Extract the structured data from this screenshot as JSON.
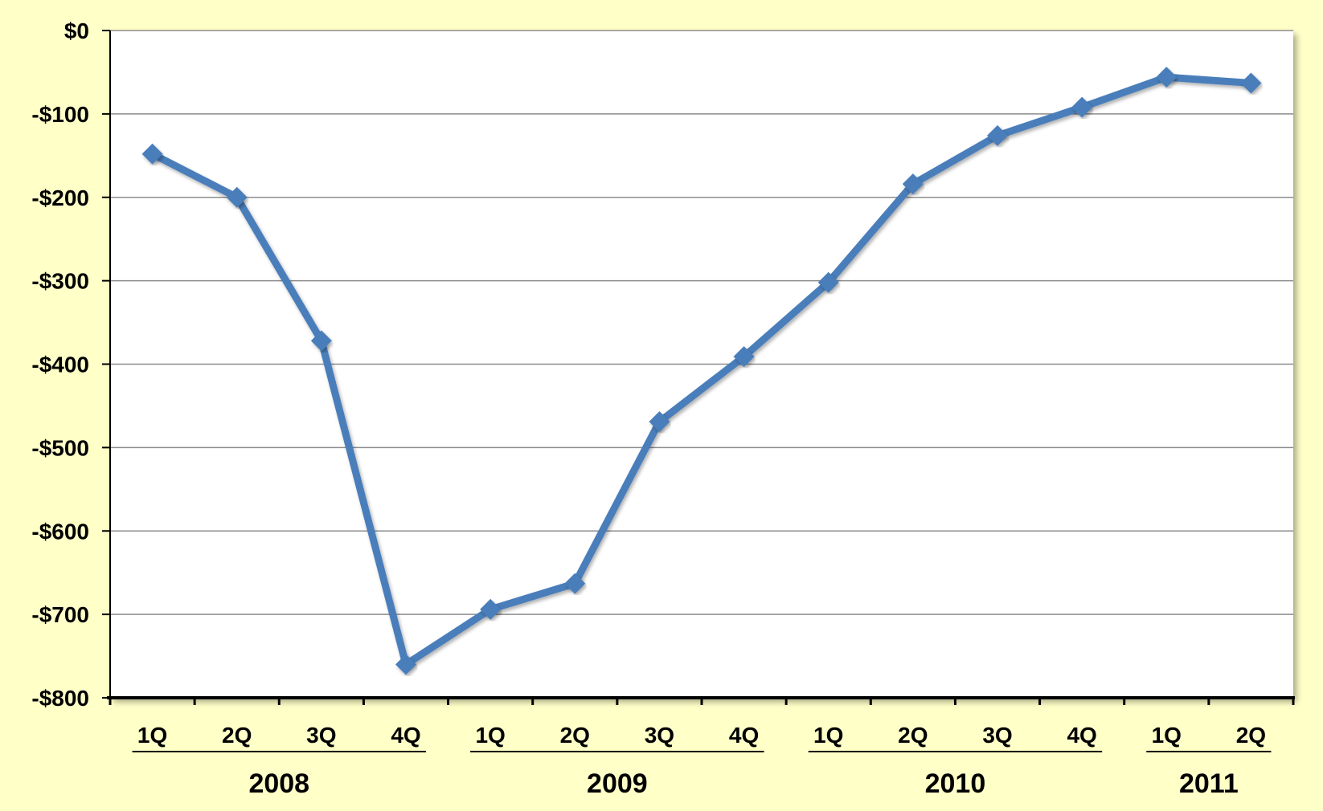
{
  "chart_data": {
    "type": "line",
    "title": "",
    "xlabel": "",
    "ylabel": "",
    "ylim": [
      -800,
      0
    ],
    "yticks": [
      0,
      -100,
      -200,
      -300,
      -400,
      -500,
      -600,
      -700,
      -800
    ],
    "ytick_labels": [
      "$0",
      "-$100",
      "-$200",
      "-$300",
      "-$400",
      "-$500",
      "-$600",
      "-$700",
      "-$800"
    ],
    "categories": [
      "1Q",
      "2Q",
      "3Q",
      "4Q",
      "1Q",
      "2Q",
      "3Q",
      "4Q",
      "1Q",
      "2Q",
      "3Q",
      "4Q",
      "1Q",
      "2Q"
    ],
    "year_groups": [
      {
        "label": "2008",
        "start": 0,
        "count": 4
      },
      {
        "label": "2009",
        "start": 4,
        "count": 4
      },
      {
        "label": "2010",
        "start": 8,
        "count": 4
      },
      {
        "label": "2011",
        "start": 12,
        "count": 2
      }
    ],
    "series": [
      {
        "values": [
          -148,
          -200,
          -372,
          -760,
          -694,
          -663,
          -469,
          -391,
          -302,
          -184,
          -126,
          -92,
          -56,
          -63
        ]
      }
    ],
    "grid": true,
    "colors": {
      "line": "#4a7ebb",
      "background": "#ffffc8",
      "plot_area": "#ffffff",
      "grid": "#8c8c8c"
    }
  }
}
